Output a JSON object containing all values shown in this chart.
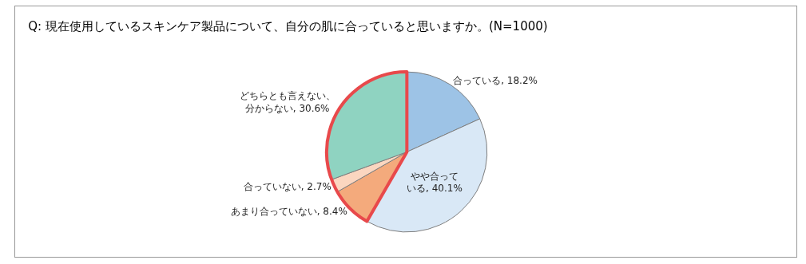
{
  "chart_data": {
    "type": "pie",
    "title": "Q: 現在使用しているスキンケア製品について、自分の肌に合っていると思いますか。(N=1000)",
    "categories": [
      "合っている",
      "やや合っている",
      "あまり合っていない",
      "合っていない",
      "どちらとも言えない、分からない"
    ],
    "values": [
      18.2,
      40.1,
      8.4,
      2.7,
      30.6
    ],
    "value_labels": [
      "18.2%",
      "40.1%",
      "8.4%",
      "2.7%",
      "30.6%"
    ],
    "colors": [
      "#9dc3e6",
      "#d9e8f6",
      "#f4aa7c",
      "#fbd6c0",
      "#8fd3c1"
    ],
    "legend": false
  }
}
